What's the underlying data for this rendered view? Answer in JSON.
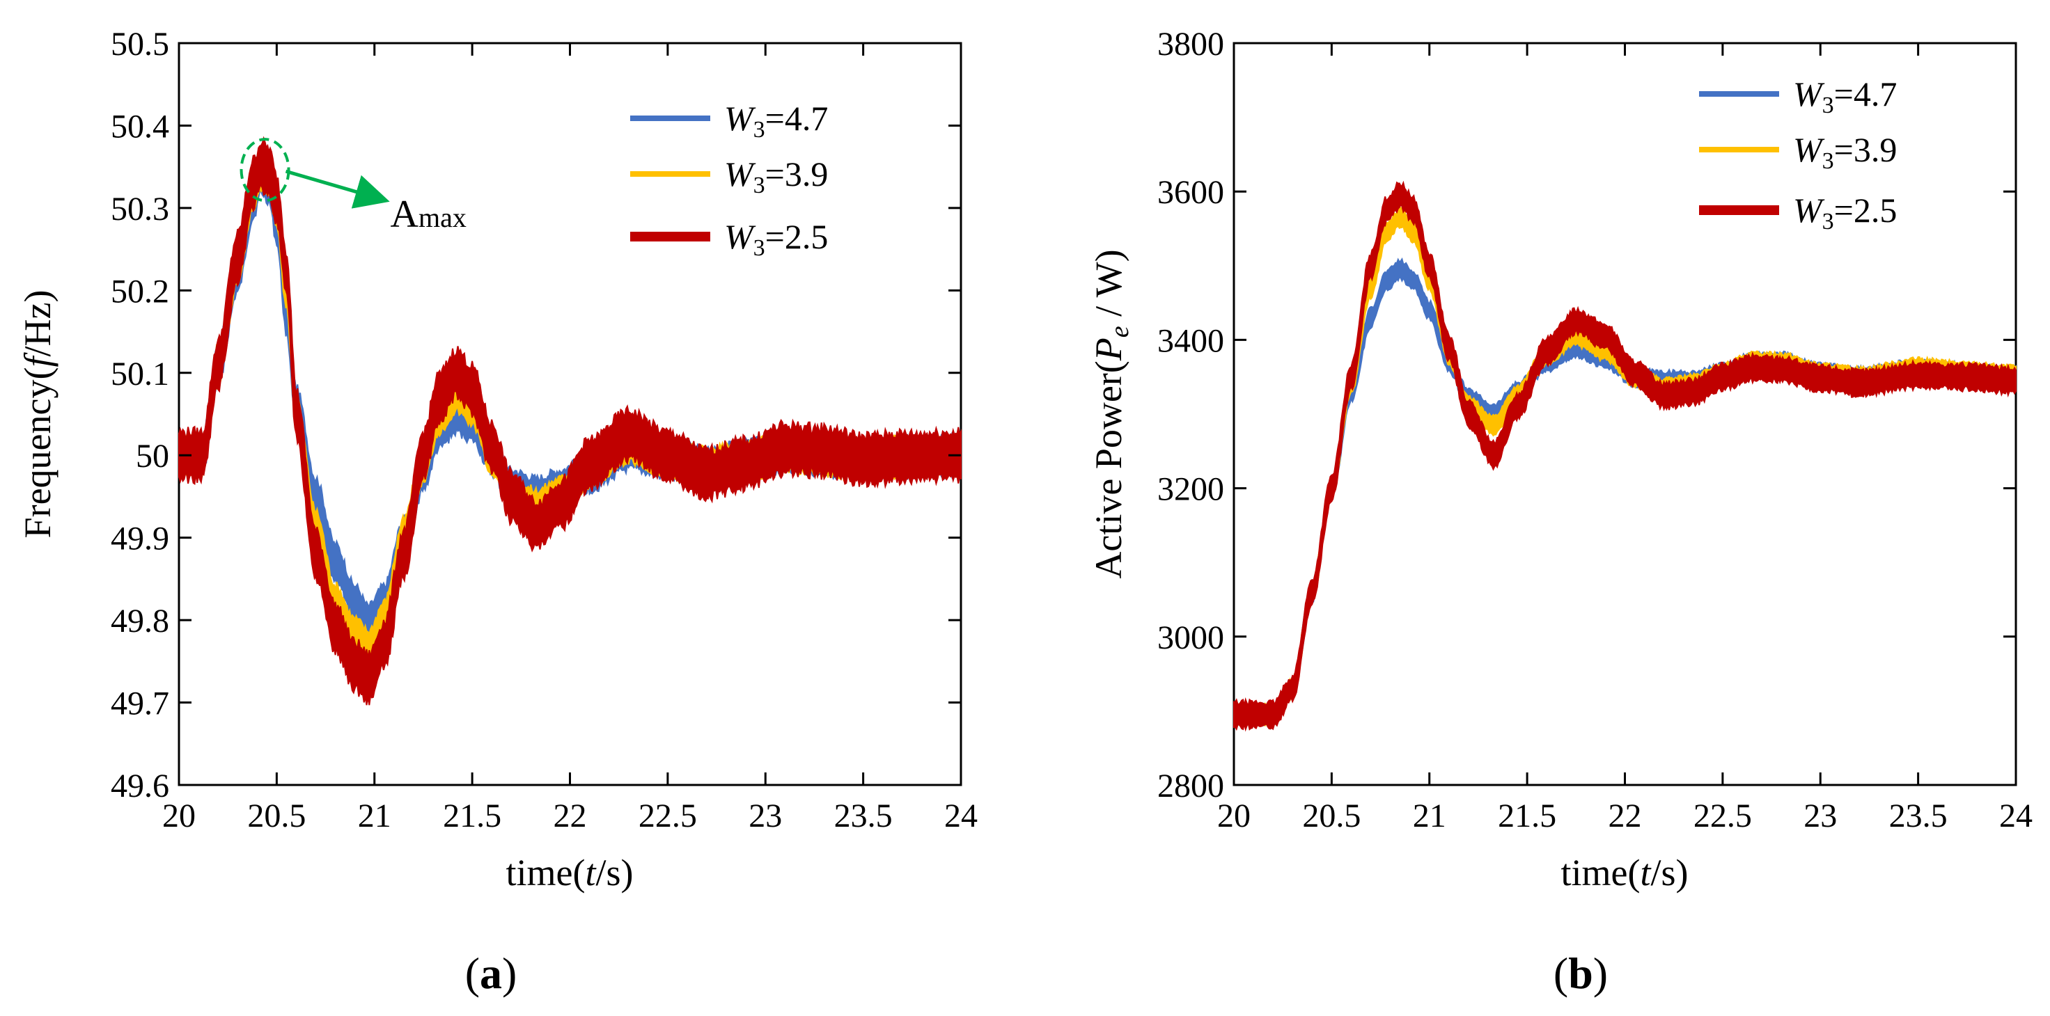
{
  "colors": {
    "w47": "#4472C4",
    "w39": "#FFC000",
    "w25": "#C00000",
    "annotation": "#00B050"
  },
  "chart_data": [
    {
      "type": "line",
      "panel_label": "a",
      "xlabel": {
        "prefix": "time(",
        "italic": "t",
        "suffix": "/s)"
      },
      "ylabel": {
        "prefix": "Frequency(",
        "italic": "f",
        "suffix": "/Hz)"
      },
      "xlim": [
        20,
        24
      ],
      "ylim": [
        49.6,
        50.5
      ],
      "xticks": [
        "20",
        "20.5",
        "21",
        "21.5",
        "22",
        "22.5",
        "23",
        "23.5",
        "24"
      ],
      "yticks": [
        "49.6",
        "49.7",
        "49.8",
        "49.9",
        "50",
        "50.1",
        "50.2",
        "50.3",
        "50.4",
        "50.5"
      ],
      "legend_position": "top-right",
      "annotation": {
        "main": "A",
        "sub": "max",
        "point": [
          20.44,
          50.353
        ]
      },
      "series": [
        {
          "name_var": "W",
          "name_sub": "3",
          "name_val": "=4.7",
          "color_key": "w47",
          "x": [
            20,
            20.1,
            20.12,
            20.2,
            20.3,
            20.38,
            20.42,
            20.46,
            20.5,
            20.55,
            20.6,
            20.7,
            20.8,
            20.9,
            20.97,
            21.05,
            21.15,
            21.25,
            21.33,
            21.42,
            21.5,
            21.6,
            21.7,
            21.83,
            21.95,
            22.1,
            22.3,
            22.5,
            22.7,
            22.9,
            23.1,
            23.3,
            23.5,
            23.7,
            24
          ],
          "y": [
            50.0,
            50.0,
            50.0,
            50.11,
            50.22,
            50.31,
            50.34,
            50.33,
            50.28,
            50.17,
            50.06,
            49.95,
            49.87,
            49.82,
            49.795,
            49.82,
            49.9,
            49.98,
            50.03,
            50.05,
            50.04,
            50.0,
            49.96,
            49.95,
            49.96,
            49.98,
            50.005,
            49.995,
            49.985,
            49.993,
            50.005,
            50.0,
            49.995,
            49.998,
            50.0
          ],
          "band": 0.022
        },
        {
          "name_var": "W",
          "name_sub": "3",
          "name_val": "=3.9",
          "color_key": "w39",
          "x": [
            20,
            20.1,
            20.12,
            20.2,
            20.3,
            20.38,
            20.42,
            20.46,
            20.5,
            20.55,
            20.6,
            20.7,
            20.8,
            20.9,
            20.97,
            21.05,
            21.15,
            21.25,
            21.33,
            21.42,
            21.5,
            21.6,
            21.7,
            21.83,
            21.95,
            22.1,
            22.3,
            22.5,
            22.7,
            22.9,
            23.1,
            23.3,
            23.5,
            23.7,
            24
          ],
          "y": [
            50.0,
            50.0,
            50.0,
            50.11,
            50.23,
            50.32,
            50.345,
            50.34,
            50.3,
            50.2,
            50.05,
            49.91,
            49.82,
            49.78,
            49.765,
            49.8,
            49.9,
            49.99,
            50.05,
            50.075,
            50.06,
            50.0,
            49.95,
            49.935,
            49.95,
            49.985,
            50.015,
            49.995,
            49.985,
            49.992,
            50.006,
            50.0,
            49.995,
            49.998,
            50.0
          ],
          "band": 0.022
        },
        {
          "name_var": "W",
          "name_sub": "3",
          "name_val": "=2.5",
          "color_key": "w25",
          "x": [
            20,
            20.1,
            20.12,
            20.2,
            20.3,
            20.38,
            20.42,
            20.46,
            20.5,
            20.55,
            20.6,
            20.7,
            20.8,
            20.9,
            20.97,
            21.05,
            21.15,
            21.25,
            21.33,
            21.42,
            21.5,
            21.6,
            21.7,
            21.83,
            21.95,
            22.1,
            22.3,
            22.5,
            22.7,
            22.9,
            23.1,
            23.3,
            23.5,
            23.7,
            24
          ],
          "y": [
            50.0,
            50.0,
            50.0,
            50.11,
            50.24,
            50.33,
            50.352,
            50.345,
            50.31,
            50.22,
            50.05,
            49.88,
            49.79,
            49.745,
            49.73,
            49.77,
            49.88,
            50.0,
            50.07,
            50.1,
            50.08,
            50.01,
            49.95,
            49.915,
            49.94,
            49.99,
            50.025,
            50.0,
            49.978,
            49.99,
            50.008,
            50.005,
            49.995,
            49.998,
            50.0
          ],
          "band": 0.028
        }
      ]
    },
    {
      "type": "line",
      "panel_label": "b",
      "xlabel": {
        "prefix": "time(",
        "italic": "t",
        "suffix": "/s)"
      },
      "ylabel": {
        "prefix": "Active Power(",
        "italic": "P",
        "italic_sub": "e",
        "suffix": " / W)"
      },
      "xlim": [
        20,
        24
      ],
      "ylim": [
        2800,
        3800
      ],
      "xticks": [
        "20",
        "20.5",
        "21",
        "21.5",
        "22",
        "22.5",
        "23",
        "23.5",
        "24"
      ],
      "yticks": [
        "2800",
        "3000",
        "3200",
        "3400",
        "3600",
        "3800"
      ],
      "legend_position": "top-right",
      "series": [
        {
          "name_var": "W",
          "name_sub": "3",
          "name_val": "=4.7",
          "color_key": "w47",
          "x": [
            20,
            20.2,
            20.3,
            20.4,
            20.5,
            20.6,
            20.7,
            20.78,
            20.85,
            20.92,
            21.0,
            21.1,
            21.2,
            21.33,
            21.45,
            21.6,
            21.75,
            21.9,
            22.05,
            22.2,
            22.35,
            22.5,
            22.65,
            22.8,
            23.0,
            23.2,
            23.5,
            23.75,
            24
          ],
          "y": [
            2895,
            2895,
            2930,
            3060,
            3200,
            3330,
            3430,
            3480,
            3495,
            3480,
            3440,
            3370,
            3320,
            3300,
            3330,
            3370,
            3390,
            3375,
            3350,
            3345,
            3345,
            3355,
            3370,
            3370,
            3355,
            3350,
            3360,
            3355,
            3350
          ],
          "band": 12
        },
        {
          "name_var": "W",
          "name_sub": "3",
          "name_val": "=3.9",
          "color_key": "w39",
          "x": [
            20,
            20.2,
            20.3,
            20.4,
            20.5,
            20.6,
            20.7,
            20.78,
            20.85,
            20.92,
            21.0,
            21.1,
            21.2,
            21.33,
            21.45,
            21.6,
            21.75,
            21.9,
            22.05,
            22.2,
            22.35,
            22.5,
            22.65,
            22.8,
            23.0,
            23.2,
            23.5,
            23.75,
            24
          ],
          "y": [
            2895,
            2895,
            2930,
            3060,
            3200,
            3340,
            3470,
            3545,
            3565,
            3545,
            3480,
            3380,
            3310,
            3285,
            3325,
            3380,
            3405,
            3385,
            3350,
            3335,
            3340,
            3355,
            3370,
            3370,
            3355,
            3350,
            3362,
            3357,
            3352
          ],
          "band": 12
        },
        {
          "name_var": "W",
          "name_sub": "3",
          "name_val": "=2.5",
          "color_key": "w25",
          "x": [
            20,
            20.2,
            20.3,
            20.4,
            20.5,
            20.6,
            20.7,
            20.78,
            20.85,
            20.92,
            21.0,
            21.1,
            21.2,
            21.33,
            21.45,
            21.6,
            21.75,
            21.9,
            22.05,
            22.2,
            22.35,
            22.5,
            22.65,
            22.8,
            23.0,
            23.2,
            23.5,
            23.75,
            24
          ],
          "y": [
            2895,
            2895,
            2930,
            3060,
            3200,
            3350,
            3500,
            3575,
            3595,
            3575,
            3500,
            3390,
            3300,
            3245,
            3310,
            3385,
            3425,
            3405,
            3355,
            3325,
            3330,
            3350,
            3362,
            3360,
            3348,
            3342,
            3352,
            3350,
            3345
          ],
          "band": 16
        }
      ]
    }
  ]
}
